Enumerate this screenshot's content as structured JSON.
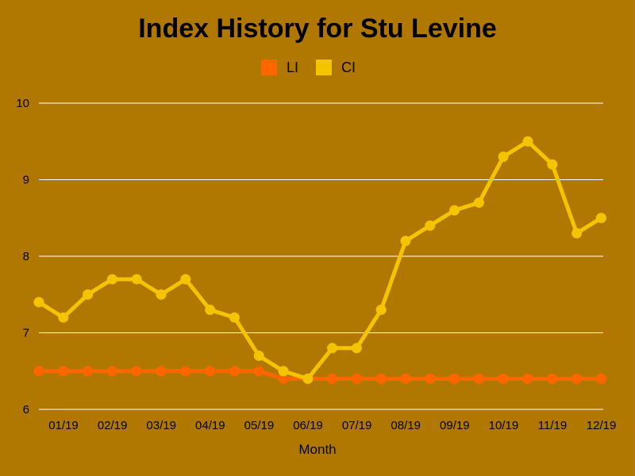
{
  "chart_data": {
    "type": "line",
    "title": "Index History for Stu Levine",
    "xlabel": "Month",
    "ylabel": "",
    "ylim": [
      6,
      10
    ],
    "yticks": [
      "6",
      "7",
      "8",
      "9",
      "10"
    ],
    "xtick_labels": [
      "01/19",
      "02/19",
      "03/19",
      "04/19",
      "05/19",
      "06/19",
      "07/19",
      "08/19",
      "09/19",
      "10/19",
      "11/19",
      "12/19"
    ],
    "grid": true,
    "legend_position": "top-center",
    "x": [
      1,
      1.5,
      2,
      2.5,
      3,
      3.5,
      4,
      4.5,
      5,
      5.5,
      6,
      6.5,
      7,
      7.5,
      8,
      8.5,
      9,
      9.5,
      10,
      10.5,
      11,
      11.5,
      12,
      12.5
    ],
    "series": [
      {
        "name": "LI",
        "color": "#ff6600",
        "values": [
          6.5,
          6.5,
          6.5,
          6.5,
          6.5,
          6.5,
          6.5,
          6.5,
          6.5,
          6.5,
          6.4,
          6.4,
          6.4,
          6.4,
          6.4,
          6.4,
          6.4,
          6.4,
          6.4,
          6.4,
          6.4,
          6.4,
          6.4,
          6.4
        ]
      },
      {
        "name": "CI",
        "color": "#f5c400",
        "values": [
          7.4,
          7.2,
          7.5,
          7.7,
          7.7,
          7.5,
          7.7,
          7.3,
          7.2,
          6.7,
          6.5,
          6.4,
          6.8,
          6.8,
          7.3,
          8.2,
          8.4,
          8.6,
          8.7,
          9.3,
          9.5,
          9.2,
          8.3,
          8.5
        ]
      }
    ]
  },
  "colors": {
    "background": "#b07800",
    "gridline": "#ffffff"
  }
}
